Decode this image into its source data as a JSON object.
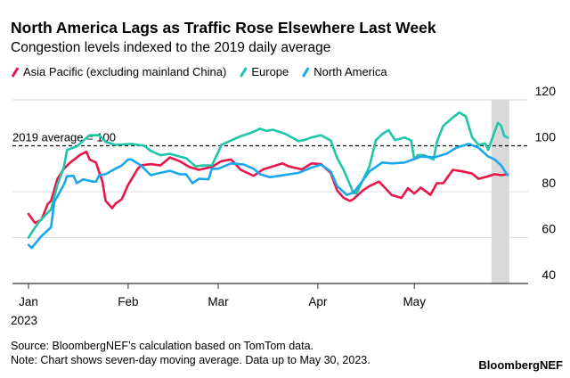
{
  "chart_data": {
    "type": "line",
    "title": "North America Lags as Traffic Rose Elsewhere Last Week",
    "subtitle": "Congestion levels indexed to the 2019 daily average",
    "legend_placement": "top-left",
    "grid": true,
    "ylim": [
      40,
      120
    ],
    "y_ticks": [
      "120",
      "100",
      "80",
      "60",
      "40"
    ],
    "y_tick_values": [
      120,
      100,
      80,
      60,
      40
    ],
    "y_axis_side": "right",
    "xlim": [
      "2023-01-01",
      "2023-05-30"
    ],
    "x_ticks": [
      {
        "date": "2023-01-01",
        "label": "Jan",
        "sublabel": "2023"
      },
      {
        "date": "2023-02-01",
        "label": "Feb"
      },
      {
        "date": "2023-03-01",
        "label": "Mar"
      },
      {
        "date": "2023-04-01",
        "label": "Apr"
      },
      {
        "date": "2023-05-01",
        "label": "May"
      }
    ],
    "reference_line": {
      "value": 100,
      "label": "2019 average = 100",
      "style": "dashed",
      "color": "#000000"
    },
    "shaded_range": {
      "from": "2023-05-25",
      "to": "2023-05-30",
      "color": "#d9d9d9"
    },
    "series": [
      {
        "name": "Asia Pacific (excluding mainland China)",
        "color": "#e8174a",
        "points": [
          [
            "2023-01-01",
            70.3
          ],
          [
            "2023-01-03",
            66.4
          ],
          [
            "2023-01-05",
            67.7
          ],
          [
            "2023-01-07",
            74.7
          ],
          [
            "2023-01-08",
            76
          ],
          [
            "2023-01-10",
            85.6
          ],
          [
            "2023-01-12",
            90
          ],
          [
            "2023-01-14",
            92.7
          ],
          [
            "2023-01-17",
            96
          ],
          [
            "2023-01-19",
            97.4
          ],
          [
            "2023-01-20",
            94
          ],
          [
            "2023-01-22",
            92.7
          ],
          [
            "2023-01-24",
            84.4
          ],
          [
            "2023-01-25",
            76
          ],
          [
            "2023-01-27",
            72.8
          ],
          [
            "2023-01-28",
            74.7
          ],
          [
            "2023-01-30",
            76.7
          ],
          [
            "2023-02-01",
            83
          ],
          [
            "2023-02-04",
            90
          ],
          [
            "2023-02-05",
            91.4
          ],
          [
            "2023-02-08",
            92
          ],
          [
            "2023-02-11",
            91.4
          ],
          [
            "2023-02-14",
            94.9
          ],
          [
            "2023-02-17",
            93.3
          ],
          [
            "2023-02-20",
            90.8
          ],
          [
            "2023-02-23",
            89.5
          ],
          [
            "2023-02-27",
            90.8
          ],
          [
            "2023-03-02",
            93.3
          ],
          [
            "2023-03-05",
            94
          ],
          [
            "2023-03-08",
            89.5
          ],
          [
            "2023-03-12",
            86.9
          ],
          [
            "2023-03-15",
            89.7
          ],
          [
            "2023-03-21",
            92.3
          ],
          [
            "2023-03-23",
            91
          ],
          [
            "2023-03-27",
            89.7
          ],
          [
            "2023-03-30",
            92.3
          ],
          [
            "2023-04-02",
            92
          ],
          [
            "2023-04-05",
            88.2
          ],
          [
            "2023-04-07",
            80.5
          ],
          [
            "2023-04-09",
            77.3
          ],
          [
            "2023-04-11",
            76
          ],
          [
            "2023-04-12",
            76.7
          ],
          [
            "2023-04-15",
            80.5
          ],
          [
            "2023-04-17",
            82.4
          ],
          [
            "2023-04-20",
            84.4
          ],
          [
            "2023-04-22",
            81.5
          ],
          [
            "2023-04-24",
            78.5
          ],
          [
            "2023-04-27",
            77.3
          ],
          [
            "2023-04-29",
            81.5
          ],
          [
            "2023-05-01",
            79.2
          ],
          [
            "2023-05-03",
            81.8
          ],
          [
            "2023-05-06",
            78.6
          ],
          [
            "2023-05-08",
            83.7
          ],
          [
            "2023-05-10",
            83.7
          ],
          [
            "2023-05-13",
            89.5
          ],
          [
            "2023-05-16",
            88.8
          ],
          [
            "2023-05-19",
            87.9
          ],
          [
            "2023-05-21",
            85.6
          ],
          [
            "2023-05-24",
            86.7
          ],
          [
            "2023-05-26",
            87.6
          ],
          [
            "2023-05-28",
            87.2
          ],
          [
            "2023-05-30",
            87.6
          ]
        ]
      },
      {
        "name": "Europe",
        "color": "#1fc5a8",
        "points": [
          [
            "2023-01-01",
            60
          ],
          [
            "2023-01-04",
            66.4
          ],
          [
            "2023-01-07",
            70.9
          ],
          [
            "2023-01-08",
            72.2
          ],
          [
            "2023-01-10",
            83
          ],
          [
            "2023-01-12",
            90.8
          ],
          [
            "2023-01-13",
            98.2
          ],
          [
            "2023-01-16",
            99.7
          ],
          [
            "2023-01-20",
            104.6
          ],
          [
            "2023-01-23",
            104.6
          ],
          [
            "2023-01-25",
            101.7
          ],
          [
            "2023-01-28",
            100.4
          ],
          [
            "2023-02-02",
            100.8
          ],
          [
            "2023-02-06",
            100
          ],
          [
            "2023-02-08",
            97.8
          ],
          [
            "2023-02-11",
            95.9
          ],
          [
            "2023-02-14",
            96.5
          ],
          [
            "2023-02-17",
            95.3
          ],
          [
            "2023-02-19",
            94.6
          ],
          [
            "2023-02-22",
            91
          ],
          [
            "2023-02-24",
            91.4
          ],
          [
            "2023-02-27",
            91.4
          ],
          [
            "2023-03-01",
            97.2
          ],
          [
            "2023-03-02",
            100.4
          ],
          [
            "2023-03-05",
            102.3
          ],
          [
            "2023-03-08",
            104.2
          ],
          [
            "2023-03-11",
            105.5
          ],
          [
            "2023-03-14",
            107.4
          ],
          [
            "2023-03-16",
            106.5
          ],
          [
            "2023-03-18",
            107
          ],
          [
            "2023-03-22",
            105.1
          ],
          [
            "2023-03-26",
            102
          ],
          [
            "2023-03-28",
            102.6
          ],
          [
            "2023-03-30",
            103.6
          ],
          [
            "2023-04-02",
            104.6
          ],
          [
            "2023-04-05",
            102.3
          ],
          [
            "2023-04-07",
            94.6
          ],
          [
            "2023-04-09",
            89.5
          ],
          [
            "2023-04-11",
            83
          ],
          [
            "2023-04-12",
            79.5
          ],
          [
            "2023-04-13",
            79.2
          ],
          [
            "2023-04-15",
            85
          ],
          [
            "2023-04-17",
            90.8
          ],
          [
            "2023-04-19",
            102.3
          ],
          [
            "2023-04-21",
            105.1
          ],
          [
            "2023-04-23",
            106.8
          ],
          [
            "2023-04-25",
            102.5
          ],
          [
            "2023-04-28",
            103.6
          ],
          [
            "2023-04-30",
            102.3
          ],
          [
            "2023-05-01",
            94
          ],
          [
            "2023-05-02",
            95.9
          ],
          [
            "2023-05-04",
            95.9
          ],
          [
            "2023-05-07",
            94
          ],
          [
            "2023-05-08",
            101.7
          ],
          [
            "2023-05-10",
            108.7
          ],
          [
            "2023-05-13",
            112.3
          ],
          [
            "2023-05-15",
            114.5
          ],
          [
            "2023-05-17",
            112.8
          ],
          [
            "2023-05-19",
            103.6
          ],
          [
            "2023-05-21",
            100.4
          ],
          [
            "2023-05-23",
            101
          ],
          [
            "2023-05-24",
            98.2
          ],
          [
            "2023-05-26",
            106.2
          ],
          [
            "2023-05-27",
            110
          ],
          [
            "2023-05-28",
            108.7
          ],
          [
            "2023-05-29",
            104.2
          ],
          [
            "2023-05-30",
            103.6
          ]
        ]
      },
      {
        "name": "North America",
        "color": "#1aa7ee",
        "points": [
          [
            "2023-01-01",
            56.8
          ],
          [
            "2023-01-02",
            55.5
          ],
          [
            "2023-01-05",
            60.6
          ],
          [
            "2023-01-08",
            64.5
          ],
          [
            "2023-01-09",
            75.4
          ],
          [
            "2023-01-12",
            83
          ],
          [
            "2023-01-13",
            86.7
          ],
          [
            "2023-01-15",
            86.9
          ],
          [
            "2023-01-16",
            83.7
          ],
          [
            "2023-01-18",
            85.4
          ],
          [
            "2023-01-21",
            84.4
          ],
          [
            "2023-01-22",
            84.4
          ],
          [
            "2023-01-23",
            87.2
          ],
          [
            "2023-01-25",
            87.6
          ],
          [
            "2023-01-28",
            90
          ],
          [
            "2023-01-30",
            91.4
          ],
          [
            "2023-02-01",
            94
          ],
          [
            "2023-02-02",
            94
          ],
          [
            "2023-02-05",
            91.4
          ],
          [
            "2023-02-06",
            90
          ],
          [
            "2023-02-08",
            87.2
          ],
          [
            "2023-02-11",
            88.2
          ],
          [
            "2023-02-14",
            89.1
          ],
          [
            "2023-02-17",
            87.6
          ],
          [
            "2023-02-19",
            87.6
          ],
          [
            "2023-02-21",
            83.7
          ],
          [
            "2023-02-23",
            85.6
          ],
          [
            "2023-02-26",
            85.4
          ],
          [
            "2023-02-27",
            90
          ],
          [
            "2023-03-01",
            90
          ],
          [
            "2023-03-05",
            92.3
          ],
          [
            "2023-03-09",
            91.8
          ],
          [
            "2023-03-12",
            90
          ],
          [
            "2023-03-14",
            87.6
          ],
          [
            "2023-03-17",
            86.3
          ],
          [
            "2023-03-20",
            86.9
          ],
          [
            "2023-03-26",
            88.2
          ],
          [
            "2023-03-30",
            90.5
          ],
          [
            "2023-04-02",
            91.8
          ],
          [
            "2023-04-05",
            88.8
          ],
          [
            "2023-04-07",
            82.4
          ],
          [
            "2023-04-10",
            78.6
          ],
          [
            "2023-04-12",
            79.5
          ],
          [
            "2023-04-14",
            83
          ],
          [
            "2023-04-17",
            88.8
          ],
          [
            "2023-04-21",
            92.7
          ],
          [
            "2023-04-24",
            92.3
          ],
          [
            "2023-04-28",
            92.7
          ],
          [
            "2023-05-03",
            95.3
          ],
          [
            "2023-05-07",
            94.9
          ],
          [
            "2023-05-11",
            96.5
          ],
          [
            "2023-05-14",
            99.1
          ],
          [
            "2023-05-18",
            100.8
          ],
          [
            "2023-05-21",
            99.1
          ],
          [
            "2023-05-24",
            95.3
          ],
          [
            "2023-05-26",
            94
          ],
          [
            "2023-05-28",
            91.4
          ],
          [
            "2023-05-30",
            87.2
          ]
        ]
      }
    ]
  },
  "footer": {
    "source": "Source: BloombergNEF’s calculation based on TomTom data.",
    "note": "Note: Chart shows seven-day moving average. Data up to May 30, 2023.",
    "brand": "BloombergNEF"
  }
}
